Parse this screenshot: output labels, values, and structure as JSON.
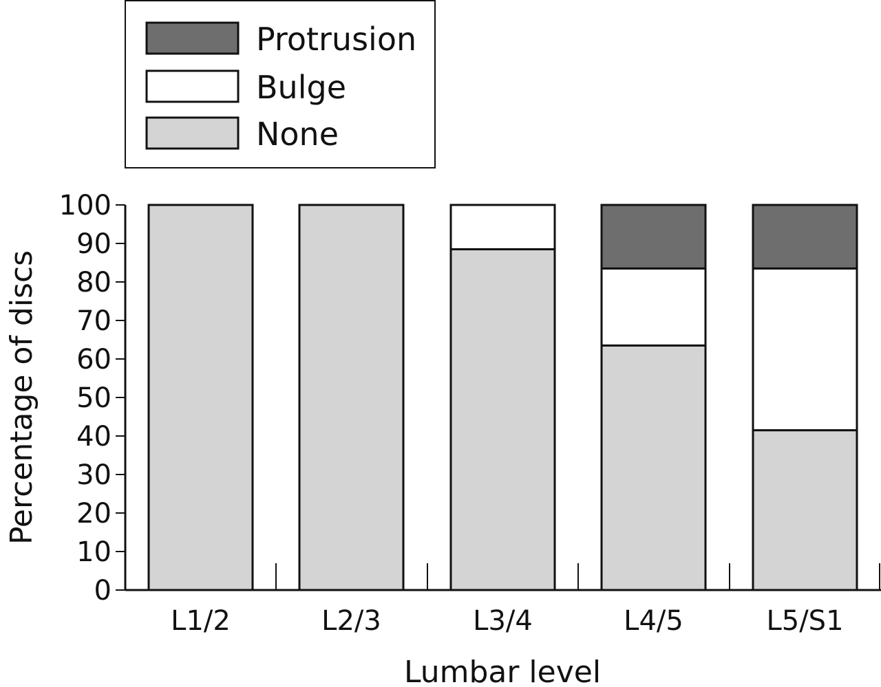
{
  "chart_data": {
    "type": "bar",
    "stacked": true,
    "xlabel": "Lumbar level",
    "ylabel": "Percentage of discs",
    "ylim": [
      0,
      100
    ],
    "yticks": [
      0,
      10,
      20,
      30,
      40,
      50,
      60,
      70,
      80,
      90,
      100
    ],
    "categories": [
      "L1/2",
      "L2/3",
      "L3/4",
      "L4/5",
      "L5/S1"
    ],
    "series": [
      {
        "name": "None",
        "color": "#d4d4d4",
        "values": [
          100,
          100,
          88.5,
          63.5,
          41.5
        ]
      },
      {
        "name": "Bulge",
        "color": "#ffffff",
        "values": [
          0,
          0,
          11.5,
          20,
          42
        ]
      },
      {
        "name": "Protrusion",
        "color": "#6e6e6e",
        "values": [
          0,
          0,
          0,
          16.5,
          16.5
        ]
      }
    ],
    "legend": {
      "placement": "top-left",
      "order": [
        "Protrusion",
        "Bulge",
        "None"
      ]
    },
    "grid": false
  }
}
